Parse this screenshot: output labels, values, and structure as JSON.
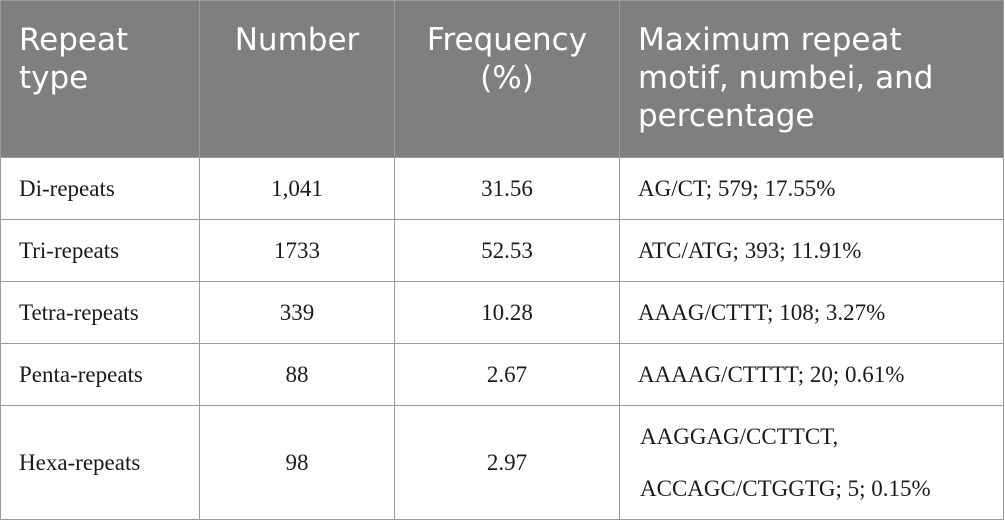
{
  "table": {
    "headers": {
      "repeat_type": "Repeat type",
      "number": "Number",
      "frequency": "Frequency (%)",
      "max_motif": "Maximum repeat motif, numbei, and percentage"
    },
    "rows": [
      {
        "type": "Di-repeats",
        "number": "1,041",
        "frequency": "31.56",
        "motif": "AG/CT; 579; 17.55%"
      },
      {
        "type": "Tri-repeats",
        "number": "1733",
        "frequency": "52.53",
        "motif": "ATC/ATG; 393; 11.91%"
      },
      {
        "type": "Tetra-repeats",
        "number": "339",
        "frequency": "10.28",
        "motif": "AAAG/CTTT; 108; 3.27%"
      },
      {
        "type": "Penta-repeats",
        "number": "88",
        "frequency": "2.67",
        "motif": "AAAAG/CTTTT; 20; 0.61%"
      },
      {
        "type": "Hexa-repeats",
        "number": "98",
        "frequency": "2.97",
        "motif_line1": "AAGGAG/CCTTCT,",
        "motif_line2": "ACCAGC/CTGGTG; 5; 0.15%"
      }
    ]
  }
}
